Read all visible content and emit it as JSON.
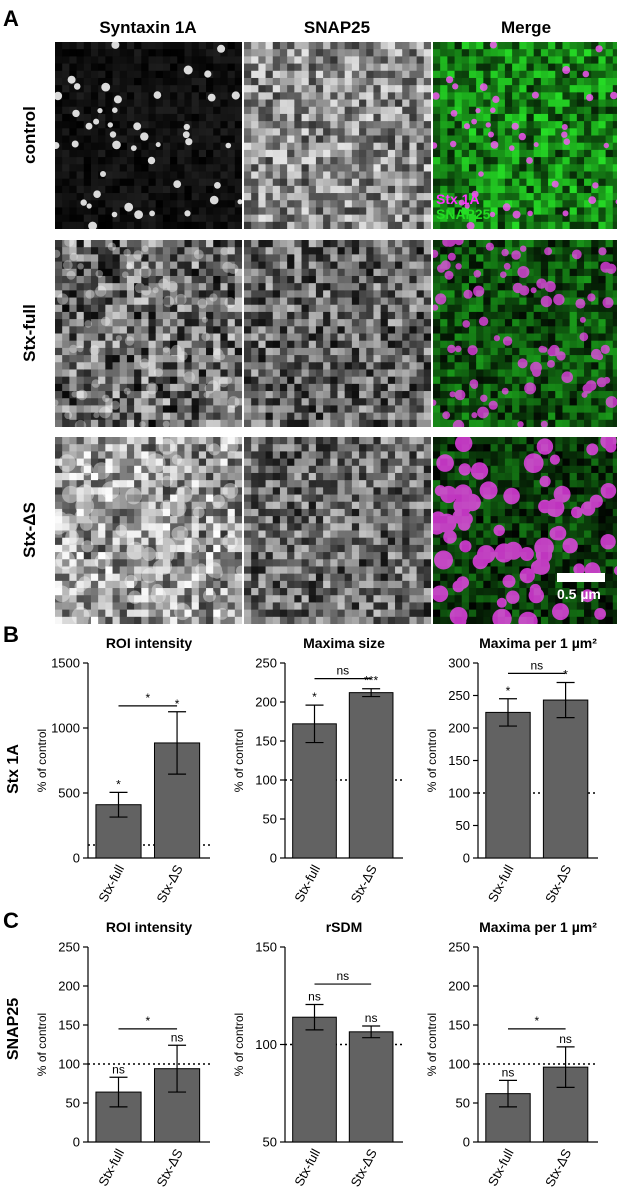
{
  "panel_letters": {
    "a": "A",
    "b": "B",
    "c": "C"
  },
  "micrographs": {
    "columns": [
      "Syntaxin 1A",
      "SNAP25",
      "Merge"
    ],
    "rows": [
      "control",
      "Stx-full",
      "Stx-ΔS"
    ],
    "merge_legend": {
      "stx": "Stx 1A",
      "snap": "SNAP25"
    },
    "scale_bar": "0.5 µm",
    "colors": {
      "stx": "#ff33ff",
      "snap": "#22dd22"
    }
  },
  "section_labels": {
    "b": "Stx 1A",
    "c": "SNAP25"
  },
  "chart_data": [
    {
      "type": "bar",
      "title": "ROI intensity",
      "categories": [
        "Stx-full",
        "Stx-ΔS"
      ],
      "values": [
        410,
        885
      ],
      "errors": [
        95,
        240
      ],
      "ylabel": "% of control",
      "ylim": [
        0,
        1500
      ],
      "yticks": [
        0,
        500,
        1000,
        1500
      ],
      "reference": 100,
      "bar_labels": [
        "*",
        "*"
      ],
      "comparison": {
        "label": "*",
        "y": 1170
      }
    },
    {
      "type": "bar",
      "title": "Maxima size",
      "categories": [
        "Stx-full",
        "Stx-ΔS"
      ],
      "values": [
        172,
        212
      ],
      "errors": [
        24,
        5
      ],
      "ylabel": "% of control",
      "ylim": [
        0,
        250
      ],
      "yticks": [
        0,
        50,
        100,
        150,
        200,
        250
      ],
      "reference": 100,
      "bar_labels": [
        "*",
        "***"
      ],
      "comparison": {
        "label": "ns",
        "y": 230
      }
    },
    {
      "type": "bar",
      "title": "Maxima per 1 µm²",
      "categories": [
        "Stx-full",
        "Stx-ΔS"
      ],
      "values": [
        224,
        243
      ],
      "errors": [
        21,
        27
      ],
      "ylabel": "% of control",
      "ylim": [
        0,
        300
      ],
      "yticks": [
        0,
        50,
        100,
        150,
        200,
        250,
        300
      ],
      "reference": 100,
      "bar_labels": [
        "*",
        "*"
      ],
      "comparison": {
        "label": "ns",
        "y": 284
      }
    },
    {
      "type": "bar",
      "title": "ROI intensity",
      "categories": [
        "Stx-full",
        "Stx-ΔS"
      ],
      "values": [
        64,
        94
      ],
      "errors": [
        19,
        30
      ],
      "ylabel": "% of control",
      "ylim": [
        0,
        250
      ],
      "yticks": [
        0,
        50,
        100,
        150,
        200,
        250
      ],
      "reference": 100,
      "bar_labels": [
        "ns",
        "ns"
      ],
      "comparison": {
        "label": "*",
        "y": 145
      }
    },
    {
      "type": "bar",
      "title": "rSDM",
      "categories": [
        "Stx-full",
        "Stx-ΔS"
      ],
      "values": [
        114,
        106.5
      ],
      "errors": [
        6.5,
        3
      ],
      "ylabel": "% of control",
      "ylim": [
        50,
        150
      ],
      "yticks": [
        50,
        100,
        150
      ],
      "reference": 100,
      "bar_labels": [
        "ns",
        "ns"
      ],
      "comparison": {
        "label": "ns",
        "y": 131
      }
    },
    {
      "type": "bar",
      "title": "Maxima per 1 µm²",
      "categories": [
        "Stx-full",
        "Stx-ΔS"
      ],
      "values": [
        62,
        96
      ],
      "errors": [
        17,
        26
      ],
      "ylabel": "% of control",
      "ylim": [
        0,
        250
      ],
      "yticks": [
        0,
        50,
        100,
        150,
        200,
        250
      ],
      "reference": 100,
      "bar_labels": [
        "ns",
        "ns"
      ],
      "comparison": {
        "label": "*",
        "y": 145
      }
    }
  ]
}
